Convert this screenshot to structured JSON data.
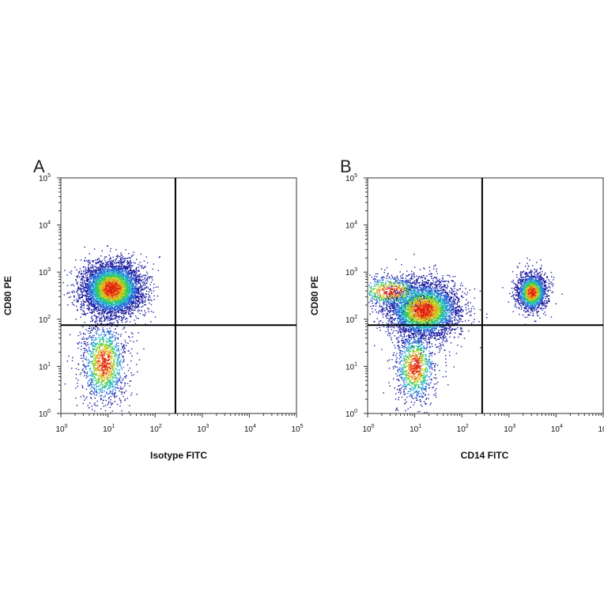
{
  "chart_data": [
    {
      "type": "scatter",
      "panel_label": "A",
      "title": "",
      "xlabel": "Isotype FITC",
      "ylabel": "CD80 PE",
      "xscale": "log",
      "yscale": "log",
      "xlim": [
        1,
        100000
      ],
      "ylim": [
        1,
        100000
      ],
      "x_ticks": [
        "10^0",
        "10^1",
        "10^2",
        "10^3",
        "10^4",
        "10^5"
      ],
      "y_ticks": [
        "10^0",
        "10^1",
        "10^2",
        "10^3",
        "10^4",
        "10^5"
      ],
      "quadrant_gate": {
        "x": 270,
        "y": 75
      },
      "density_colormap": [
        "#1a1aa0",
        "#2a6ad8",
        "#20b8c8",
        "#3cc850",
        "#c8d820",
        "#f09020",
        "#e02010"
      ],
      "populations": [
        {
          "x_center": 12,
          "y_center": 450,
          "x_spread_decades": 0.32,
          "y_spread_decades": 0.28,
          "events": 5200
        },
        {
          "x_center": 8,
          "y_center": 12,
          "x_spread_decades": 0.25,
          "y_spread_decades": 0.45,
          "events": 1400
        }
      ],
      "grid": false,
      "legend": "none"
    },
    {
      "type": "scatter",
      "panel_label": "B",
      "title": "",
      "xlabel": "CD14 FITC",
      "ylabel": "CD80 PE",
      "xscale": "log",
      "yscale": "log",
      "xlim": [
        1,
        100000
      ],
      "ylim": [
        1,
        100000
      ],
      "x_ticks": [
        "10^0",
        "10^1",
        "10^2",
        "10^3",
        "10^4",
        "10^5"
      ],
      "y_ticks": [
        "10^0",
        "10^1",
        "10^2",
        "10^3",
        "10^4",
        "10^5"
      ],
      "quadrant_gate": {
        "x": 270,
        "y": 75
      },
      "density_colormap": [
        "#1a1aa0",
        "#2a6ad8",
        "#20b8c8",
        "#3cc850",
        "#c8d820",
        "#f09020",
        "#e02010"
      ],
      "populations": [
        {
          "x_center": 15,
          "y_center": 160,
          "x_spread_decades": 0.38,
          "y_spread_decades": 0.3,
          "events": 4200
        },
        {
          "x_center": 3000,
          "y_center": 380,
          "x_spread_decades": 0.16,
          "y_spread_decades": 0.2,
          "events": 1900
        },
        {
          "x_center": 10,
          "y_center": 10,
          "x_spread_decades": 0.22,
          "y_spread_decades": 0.4,
          "events": 1100
        },
        {
          "x_center": 3,
          "y_center": 400,
          "x_spread_decades": 0.4,
          "y_spread_decades": 0.18,
          "events": 700
        }
      ],
      "grid": false,
      "legend": "none"
    }
  ]
}
